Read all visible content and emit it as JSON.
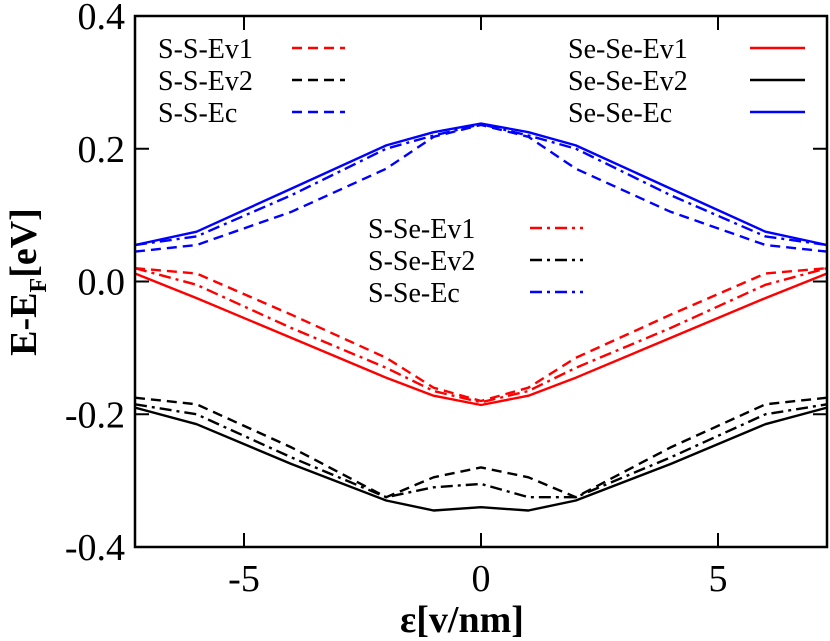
{
  "chart_data": {
    "type": "line",
    "xlabel": "ε[v/nm]",
    "ylabel": {
      "main": "E-E",
      "subscript": "F",
      "unit": "[eV]"
    },
    "xlim": [
      -7.3,
      7.3
    ],
    "ylim": [
      -0.4,
      0.4
    ],
    "xticks": [
      {
        "value": -5,
        "label": "-5"
      },
      {
        "value": 0,
        "label": "0"
      },
      {
        "value": 5,
        "label": "5"
      }
    ],
    "yticks": [
      {
        "value": 0.4,
        "label": "0.4"
      },
      {
        "value": 0.2,
        "label": "0.2"
      },
      {
        "value": 0.0,
        "label": "0.0"
      },
      {
        "value": -0.2,
        "label": "-0.2"
      },
      {
        "value": -0.4,
        "label": "-0.4"
      }
    ],
    "grid": false,
    "legend_groups": [
      {
        "placement": "top-left",
        "series": [
          "S-S-Ev1",
          "S-S-Ev2",
          "S-S-Ec"
        ]
      },
      {
        "placement": "top-right",
        "series": [
          "Se-Se-Ev1",
          "Se-Se-Ev2",
          "Se-Se-Ec"
        ]
      },
      {
        "placement": "center",
        "series": [
          "S-Se-Ev1",
          "S-Se-Ev2",
          "S-Se-Ec"
        ]
      }
    ],
    "series": [
      {
        "name": "S-S-Ev1",
        "color": "#ff0000",
        "style": "dashed",
        "x": [
          -7.3,
          -6,
          -4,
          -2,
          -1,
          0,
          1,
          2,
          4,
          6,
          7.3
        ],
        "y": [
          0.02,
          0.012,
          -0.05,
          -0.115,
          -0.16,
          -0.18,
          -0.16,
          -0.115,
          -0.05,
          0.012,
          0.02
        ]
      },
      {
        "name": "S-S-Ev2",
        "color": "#000000",
        "style": "dashed",
        "x": [
          -7.3,
          -6,
          -4,
          -2,
          -1,
          0,
          1,
          2,
          4,
          6,
          7.3
        ],
        "y": [
          -0.175,
          -0.185,
          -0.25,
          -0.325,
          -0.295,
          -0.28,
          -0.295,
          -0.325,
          -0.25,
          -0.185,
          -0.175
        ]
      },
      {
        "name": "S-S-Ec",
        "color": "#0000ff",
        "style": "dashed",
        "x": [
          -7.3,
          -6,
          -4,
          -2,
          -1,
          0,
          1,
          2,
          4,
          6,
          7.3
        ],
        "y": [
          0.045,
          0.055,
          0.105,
          0.17,
          0.218,
          0.236,
          0.218,
          0.17,
          0.105,
          0.055,
          0.045
        ]
      },
      {
        "name": "Se-Se-Ev1",
        "color": "#ff0000",
        "style": "solid",
        "x": [
          -7.3,
          -6,
          -4,
          -2,
          -1,
          0,
          1,
          2,
          4,
          6,
          7.3
        ],
        "y": [
          0.012,
          -0.025,
          -0.085,
          -0.145,
          -0.172,
          -0.186,
          -0.172,
          -0.145,
          -0.085,
          -0.025,
          0.012
        ]
      },
      {
        "name": "Se-Se-Ev2",
        "color": "#000000",
        "style": "solid",
        "x": [
          -7.3,
          -6,
          -4,
          -2,
          -1,
          0,
          1,
          2,
          4,
          6,
          7.3
        ],
        "y": [
          -0.19,
          -0.215,
          -0.275,
          -0.33,
          -0.345,
          -0.34,
          -0.345,
          -0.33,
          -0.275,
          -0.215,
          -0.19
        ]
      },
      {
        "name": "Se-Se-Ec",
        "color": "#0000ff",
        "style": "solid",
        "x": [
          -7.3,
          -6,
          -4,
          -2,
          -1,
          0,
          1,
          2,
          4,
          6,
          7.3
        ],
        "y": [
          0.055,
          0.075,
          0.14,
          0.205,
          0.225,
          0.238,
          0.225,
          0.205,
          0.14,
          0.075,
          0.055
        ]
      },
      {
        "name": "S-Se-Ev1",
        "color": "#ff0000",
        "style": "dashdot",
        "x": [
          -7.3,
          -6,
          -4,
          -2,
          -1,
          0,
          1,
          2,
          4,
          6,
          7.3
        ],
        "y": [
          0.02,
          -0.005,
          -0.07,
          -0.13,
          -0.165,
          -0.182,
          -0.165,
          -0.13,
          -0.07,
          -0.005,
          0.02
        ]
      },
      {
        "name": "S-Se-Ev2",
        "color": "#000000",
        "style": "dashdot",
        "x": [
          -7.3,
          -6,
          -4,
          -2,
          -1,
          0,
          1,
          2,
          4,
          6,
          7.3
        ],
        "y": [
          -0.185,
          -0.2,
          -0.265,
          -0.325,
          -0.31,
          -0.305,
          -0.325,
          -0.325,
          -0.265,
          -0.2,
          -0.185
        ]
      },
      {
        "name": "S-Se-Ec",
        "color": "#0000ff",
        "style": "dashdot",
        "x": [
          -7.3,
          -6,
          -4,
          -2,
          -1,
          0,
          1,
          2,
          4,
          6,
          7.3
        ],
        "y": [
          0.055,
          0.068,
          0.13,
          0.2,
          0.22,
          0.237,
          0.22,
          0.2,
          0.13,
          0.068,
          0.055
        ]
      }
    ]
  }
}
